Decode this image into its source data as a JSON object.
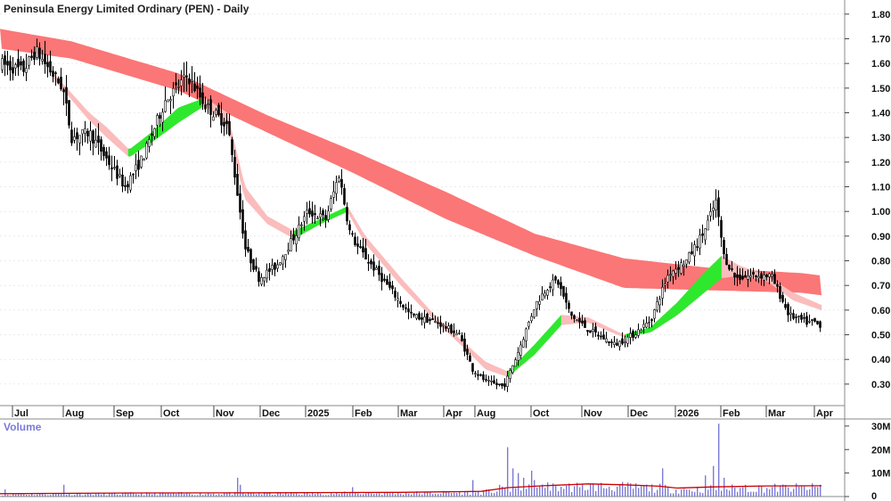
{
  "chart_data": {
    "type": "candlestick",
    "title": "Peninsula Energy Limited Ordinary (PEN) - Daily",
    "volume_label": "Volume",
    "price_axis": {
      "range": [
        0.22,
        1.85
      ],
      "ticks": [
        "1.80",
        "1.70",
        "1.60",
        "1.50",
        "1.40",
        "1.30",
        "1.20",
        "1.10",
        "1.00",
        "0.90",
        "0.80",
        "0.70",
        "0.60",
        "0.50",
        "0.40",
        "0.30"
      ]
    },
    "volume_axis": {
      "range": [
        0,
        33
      ],
      "unit": "M",
      "ticks": [
        "30M",
        "20M",
        "10M",
        "0"
      ]
    },
    "x_labels": [
      "Jul",
      "Aug",
      "Sep",
      "Oct",
      "Nov",
      "Dec",
      "2025",
      "Feb",
      "Mar",
      "Apr",
      "Aug",
      "Oct",
      "Nov",
      "Dec",
      "2026",
      "Feb",
      "Mar",
      "Apr"
    ],
    "price_path": [
      [
        0,
        1.6
      ],
      [
        25,
        1.57
      ],
      [
        40,
        1.65
      ],
      [
        70,
        1.5
      ],
      [
        80,
        1.3
      ],
      [
        100,
        1.32
      ],
      [
        125,
        1.18
      ],
      [
        140,
        1.1
      ],
      [
        160,
        1.22
      ],
      [
        185,
        1.45
      ],
      [
        210,
        1.55
      ],
      [
        230,
        1.43
      ],
      [
        255,
        1.35
      ],
      [
        265,
        1.1
      ],
      [
        275,
        0.85
      ],
      [
        290,
        0.73
      ],
      [
        310,
        0.78
      ],
      [
        330,
        0.9
      ],
      [
        345,
        1.0
      ],
      [
        365,
        0.97
      ],
      [
        380,
        1.15
      ],
      [
        392,
        0.92
      ],
      [
        400,
        0.86
      ],
      [
        430,
        0.72
      ],
      [
        460,
        0.58
      ],
      [
        490,
        0.55
      ],
      [
        515,
        0.5
      ],
      [
        530,
        0.36
      ],
      [
        545,
        0.31
      ],
      [
        565,
        0.29
      ],
      [
        580,
        0.42
      ],
      [
        600,
        0.62
      ],
      [
        615,
        0.7
      ],
      [
        625,
        0.72
      ],
      [
        640,
        0.58
      ],
      [
        660,
        0.52
      ],
      [
        690,
        0.46
      ],
      [
        710,
        0.5
      ],
      [
        730,
        0.56
      ],
      [
        750,
        0.75
      ],
      [
        770,
        0.8
      ],
      [
        790,
        0.92
      ],
      [
        803,
        1.04
      ],
      [
        812,
        0.82
      ],
      [
        825,
        0.73
      ],
      [
        845,
        0.74
      ],
      [
        865,
        0.74
      ],
      [
        885,
        0.58
      ],
      [
        905,
        0.55
      ],
      [
        915,
        0.55
      ],
      [
        922,
        0.52
      ]
    ],
    "ribbon_long_upper": [
      [
        0,
        1.74
      ],
      [
        80,
        1.69
      ],
      [
        200,
        1.56
      ],
      [
        300,
        1.39
      ],
      [
        400,
        1.24
      ],
      [
        500,
        1.08
      ],
      [
        600,
        0.91
      ],
      [
        700,
        0.81
      ],
      [
        800,
        0.77
      ],
      [
        900,
        0.75
      ],
      [
        922,
        0.74
      ]
    ],
    "ribbon_long_lower": [
      [
        0,
        1.66
      ],
      [
        80,
        1.62
      ],
      [
        200,
        1.49
      ],
      [
        300,
        1.32
      ],
      [
        400,
        1.15
      ],
      [
        500,
        0.97
      ],
      [
        600,
        0.82
      ],
      [
        700,
        0.69
      ],
      [
        800,
        0.68
      ],
      [
        900,
        0.67
      ],
      [
        922,
        0.66
      ]
    ],
    "ribbon_short_upper": [
      [
        60,
        1.56
      ],
      [
        100,
        1.4
      ],
      [
        120,
        1.34
      ],
      [
        145,
        1.25
      ],
      [
        170,
        1.32
      ],
      [
        200,
        1.42
      ],
      [
        230,
        1.46
      ],
      [
        255,
        1.4
      ],
      [
        275,
        1.1
      ],
      [
        300,
        0.98
      ],
      [
        330,
        0.92
      ],
      [
        360,
        0.97
      ],
      [
        390,
        1.02
      ],
      [
        410,
        0.9
      ],
      [
        450,
        0.73
      ],
      [
        490,
        0.57
      ],
      [
        520,
        0.47
      ],
      [
        545,
        0.39
      ],
      [
        570,
        0.35
      ],
      [
        600,
        0.46
      ],
      [
        630,
        0.58
      ],
      [
        660,
        0.57
      ],
      [
        700,
        0.5
      ],
      [
        730,
        0.53
      ],
      [
        760,
        0.63
      ],
      [
        790,
        0.75
      ],
      [
        810,
        0.82
      ],
      [
        830,
        0.78
      ],
      [
        860,
        0.74
      ],
      [
        890,
        0.67
      ],
      [
        922,
        0.62
      ]
    ],
    "ribbon_short_lower": [
      [
        60,
        1.54
      ],
      [
        100,
        1.37
      ],
      [
        120,
        1.3
      ],
      [
        145,
        1.22
      ],
      [
        170,
        1.28
      ],
      [
        200,
        1.36
      ],
      [
        230,
        1.43
      ],
      [
        255,
        1.35
      ],
      [
        275,
        1.05
      ],
      [
        300,
        0.95
      ],
      [
        330,
        0.89
      ],
      [
        360,
        0.95
      ],
      [
        390,
        1.0
      ],
      [
        410,
        0.87
      ],
      [
        450,
        0.7
      ],
      [
        490,
        0.55
      ],
      [
        520,
        0.45
      ],
      [
        545,
        0.36
      ],
      [
        570,
        0.33
      ],
      [
        600,
        0.42
      ],
      [
        630,
        0.54
      ],
      [
        660,
        0.55
      ],
      [
        700,
        0.49
      ],
      [
        730,
        0.51
      ],
      [
        760,
        0.58
      ],
      [
        790,
        0.67
      ],
      [
        810,
        0.73
      ],
      [
        830,
        0.74
      ],
      [
        860,
        0.72
      ],
      [
        890,
        0.64
      ],
      [
        922,
        0.6
      ]
    ],
    "volume_spikes": [
      [
        5,
        3
      ],
      [
        70,
        5
      ],
      [
        265,
        8
      ],
      [
        270,
        5
      ],
      [
        395,
        4
      ],
      [
        530,
        7
      ],
      [
        560,
        5
      ],
      [
        570,
        21
      ],
      [
        575,
        12
      ],
      [
        580,
        10
      ],
      [
        588,
        8
      ],
      [
        595,
        11
      ],
      [
        600,
        7
      ],
      [
        615,
        6
      ],
      [
        650,
        4
      ],
      [
        742,
        12
      ],
      [
        790,
        9
      ],
      [
        800,
        13
      ],
      [
        806,
        31
      ],
      [
        812,
        8
      ],
      [
        835,
        5
      ],
      [
        920,
        5
      ],
      [
        923,
        9
      ]
    ],
    "volume_avg": [
      [
        0,
        1.2
      ],
      [
        150,
        1.5
      ],
      [
        300,
        1.6
      ],
      [
        450,
        1.8
      ],
      [
        540,
        2.2
      ],
      [
        570,
        3.8
      ],
      [
        610,
        4.6
      ],
      [
        660,
        5.4
      ],
      [
        700,
        5.0
      ],
      [
        740,
        4.4
      ],
      [
        760,
        3.6
      ],
      [
        800,
        4.1
      ],
      [
        860,
        4.5
      ],
      [
        922,
        4.6
      ]
    ]
  },
  "colors": {
    "background": "#ffffff",
    "long_ribbon": "#fb7676",
    "short_ribbon_down": "#fbbcbc",
    "short_ribbon_up_green": "#2ee82e",
    "short_ribbon_crossover_orange": "#f26f22",
    "candle": "#000000",
    "volume_bar": "#7b7bd8",
    "volume_average": "#cc0000",
    "gridline": "#dddddd"
  }
}
